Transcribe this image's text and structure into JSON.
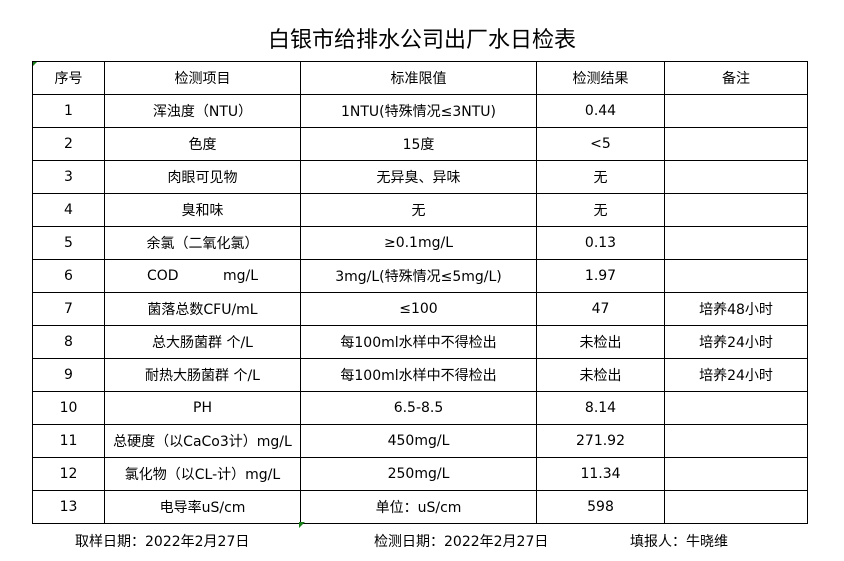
{
  "title": "白银市给排水公司出厂水日检表",
  "headers": [
    "序号",
    "检测项目",
    "标准限值",
    "检测结果",
    "备注"
  ],
  "rows": [
    [
      "1",
      "浑浊度（NTU）",
      "1NTU(特殊情况≤3NTU)",
      "0.44",
      ""
    ],
    [
      "2",
      "色度",
      "15度",
      "<5",
      ""
    ],
    [
      "3",
      "肉眼可见物",
      "无异臭、异味",
      "无",
      ""
    ],
    [
      "4",
      "臭和味",
      "无",
      "无",
      ""
    ],
    [
      "5",
      "余氯（二氧化氯）",
      "≥0.1mg/L",
      "0.13",
      ""
    ],
    [
      "6",
      "COD          mg/L",
      "3mg/L(特殊情况≤5mg/L)",
      "1.97",
      ""
    ],
    [
      "7",
      "菌落总数CFU/mL",
      "≤100",
      "47",
      "培养48小时"
    ],
    [
      "8",
      "总大肠菌群 个/L",
      "每100ml水样中不得检出",
      "未检出",
      "培养24小时"
    ],
    [
      "9",
      "耐热大肠菌群 个/L",
      "每100ml水样中不得检出",
      "未检出",
      "培养24小时"
    ],
    [
      "10",
      "PH",
      "6.5-8.5",
      "8.14",
      ""
    ],
    [
      "11",
      "总硬度（以CaCo3计）mg/L",
      "450mg/L",
      "271.92",
      ""
    ],
    [
      "12",
      "氯化物（以CL-计）mg/L",
      "250mg/L",
      "11.34",
      ""
    ],
    [
      "13",
      "电导率uS/cm",
      "单位：uS/cm",
      "598",
      ""
    ]
  ],
  "footer": {
    "sample_date": "取样日期：2022年2月27日",
    "test_date": "检测日期：2022年2月27日",
    "reporter": "填报人：牛晓维"
  }
}
